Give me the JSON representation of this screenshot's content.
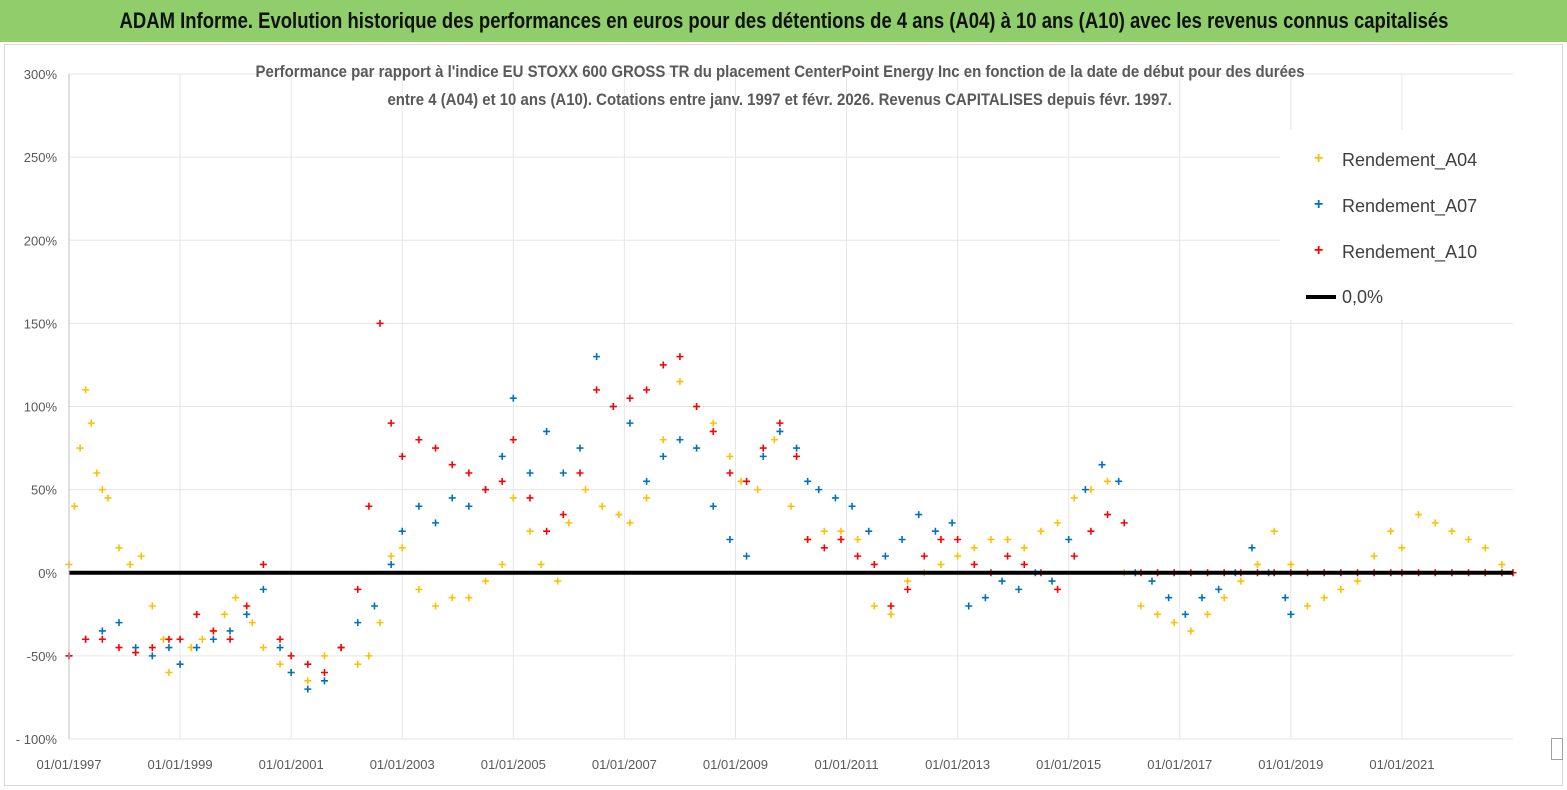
{
  "banner": {
    "title": "ADAM Informe. Evolution historique des performances en euros pour des détentions de 4 ans (A04) à 10 ans (A10) avec les revenus connus capitalisés"
  },
  "colors": {
    "banner": "#8fce6a",
    "a04": "#ffc000",
    "a07": "#0070c0",
    "a10": "#ff0000",
    "zero": "#000000"
  },
  "chart_data": {
    "type": "scatter",
    "title_line1": "Performance par rapport à l'indice EU STOXX 600 GROSS TR  du placement CenterPoint Energy Inc en fonction de la date de début pour des durées",
    "title_line2": "entre 4 (A04) et 10 ans (A10). Cotations entre janv. 1997 et févr. 2026. Revenus CAPITALISES depuis févr. 1997.",
    "xlabel": "",
    "ylabel": "",
    "x_range": [
      1997.0,
      2023.0
    ],
    "ylim": [
      -100,
      300
    ],
    "y_ticks": [
      "300%",
      "250%",
      "200%",
      "150%",
      "100%",
      "50%",
      "0%",
      "-50%",
      "- 100%"
    ],
    "y_tick_values": [
      300,
      250,
      200,
      150,
      100,
      50,
      0,
      -50,
      -100
    ],
    "x_ticks": [
      "01/01/1997",
      "01/01/1999",
      "01/01/2001",
      "01/01/2003",
      "01/01/2005",
      "01/01/2007",
      "01/01/2009",
      "01/01/2011",
      "01/01/2013",
      "01/01/2015",
      "01/01/2017",
      "01/01/2019",
      "01/01/2021"
    ],
    "x_tick_values": [
      1997,
      1999,
      2001,
      2003,
      2005,
      2007,
      2009,
      2011,
      2013,
      2015,
      2017,
      2019,
      2021
    ],
    "legend_position": "top-right",
    "series": [
      {
        "name": "Rendement_A04",
        "marker": "+",
        "x": [
          1997.0,
          1997.1,
          1997.2,
          1997.3,
          1997.4,
          1997.5,
          1997.6,
          1997.7,
          1997.9,
          1998.1,
          1998.3,
          1998.5,
          1998.7,
          1998.8,
          1999.0,
          1999.2,
          1999.4,
          1999.6,
          1999.8,
          2000.0,
          2000.3,
          2000.5,
          2000.8,
          2001.0,
          2001.3,
          2001.6,
          2001.9,
          2002.2,
          2002.4,
          2002.6,
          2002.8,
          2003.0,
          2003.3,
          2003.6,
          2003.9,
          2004.2,
          2004.5,
          2004.8,
          2005.0,
          2005.3,
          2005.5,
          2005.8,
          2006.0,
          2006.3,
          2006.6,
          2006.9,
          2007.1,
          2007.4,
          2007.7,
          2008.0,
          2008.3,
          2008.6,
          2008.9,
          2009.1,
          2009.4,
          2009.7,
          2010.0,
          2010.3,
          2010.6,
          2010.9,
          2011.2,
          2011.5,
          2011.8,
          2012.1,
          2012.4,
          2012.7,
          2013.0,
          2013.3,
          2013.6,
          2013.9,
          2014.2,
          2014.5,
          2014.8,
          2015.1,
          2015.4,
          2015.7,
          2016.0,
          2016.3,
          2016.6,
          2016.9,
          2017.2,
          2017.5,
          2017.8,
          2018.1,
          2018.4,
          2018.7,
          2019.0,
          2019.3,
          2019.6,
          2019.9,
          2020.2,
          2020.5,
          2020.8,
          2021.0,
          2021.3,
          2021.6,
          2021.9,
          2022.2,
          2022.5,
          2022.8,
          2023.0
        ],
        "y": [
          5,
          40,
          75,
          110,
          90,
          60,
          50,
          45,
          15,
          5,
          10,
          -20,
          -40,
          -60,
          -55,
          -45,
          -40,
          -35,
          -25,
          -15,
          -30,
          -45,
          -55,
          -60,
          -65,
          -50,
          -45,
          -55,
          -50,
          -30,
          10,
          15,
          -10,
          -20,
          -15,
          -15,
          -5,
          5,
          45,
          25,
          5,
          -5,
          30,
          50,
          40,
          35,
          30,
          45,
          80,
          115,
          100,
          90,
          70,
          55,
          50,
          80,
          40,
          20,
          25,
          25,
          20,
          -20,
          -25,
          -5,
          0,
          5,
          10,
          15,
          20,
          20,
          15,
          25,
          30,
          45,
          50,
          55,
          0,
          -20,
          -25,
          -30,
          -35,
          -25,
          -15,
          -5,
          5,
          25,
          5,
          -20,
          -15,
          -10,
          -5,
          10,
          25,
          15,
          35,
          30,
          25,
          20,
          15,
          5,
          0
        ]
      },
      {
        "name": "Rendement_A07",
        "marker": "+",
        "x": [
          1997.0,
          1997.3,
          1997.6,
          1997.9,
          1998.2,
          1998.5,
          1998.8,
          1999.0,
          1999.3,
          1999.6,
          1999.9,
          2000.2,
          2000.5,
          2000.8,
          2001.0,
          2001.3,
          2001.6,
          2001.9,
          2002.2,
          2002.5,
          2002.8,
          2003.0,
          2003.3,
          2003.6,
          2003.9,
          2004.2,
          2004.5,
          2004.8,
          2005.0,
          2005.3,
          2005.6,
          2005.9,
          2006.2,
          2006.5,
          2006.8,
          2007.1,
          2007.4,
          2007.7,
          2008.0,
          2008.3,
          2008.6,
          2008.9,
          2009.2,
          2009.5,
          2009.8,
          2010.1,
          2010.3,
          2010.5,
          2010.8,
          2011.1,
          2011.4,
          2011.7,
          2012.0,
          2012.3,
          2012.6,
          2012.9,
          2013.2,
          2013.5,
          2013.8,
          2014.1,
          2014.4,
          2014.7,
          2015.0,
          2015.3,
          2015.6,
          2015.9,
          2016.2,
          2016.5,
          2016.8,
          2017.1,
          2017.4,
          2017.7,
          2018.0,
          2018.3,
          2018.6,
          2018.9,
          2019.0
        ],
        "y": [
          -50,
          -40,
          -35,
          -30,
          -45,
          -50,
          -45,
          -55,
          -45,
          -40,
          -35,
          -25,
          -10,
          -45,
          -60,
          -70,
          -65,
          -45,
          -30,
          -20,
          5,
          25,
          40,
          30,
          45,
          40,
          50,
          70,
          105,
          60,
          85,
          60,
          75,
          130,
          100,
          90,
          55,
          70,
          80,
          75,
          40,
          20,
          10,
          70,
          85,
          75,
          55,
          50,
          45,
          40,
          25,
          10,
          20,
          35,
          25,
          30,
          -20,
          -15,
          -5,
          -10,
          0,
          -5,
          20,
          50,
          65,
          55,
          0,
          -5,
          -15,
          -25,
          -15,
          -10,
          0,
          15,
          0,
          -15,
          -25
        ]
      },
      {
        "name": "Rendement_A10",
        "marker": "+",
        "x": [
          1997.0,
          1997.3,
          1997.6,
          1997.9,
          1998.2,
          1998.5,
          1998.8,
          1999.0,
          1999.3,
          1999.6,
          1999.9,
          2000.2,
          2000.5,
          2000.8,
          2001.0,
          2001.3,
          2001.6,
          2001.9,
          2002.2,
          2002.4,
          2002.6,
          2002.8,
          2003.0,
          2003.3,
          2003.6,
          2003.9,
          2004.2,
          2004.5,
          2004.8,
          2005.0,
          2005.3,
          2005.6,
          2005.9,
          2006.2,
          2006.5,
          2006.8,
          2007.1,
          2007.4,
          2007.7,
          2008.0,
          2008.3,
          2008.6,
          2008.9,
          2009.2,
          2009.5,
          2009.8,
          2010.1,
          2010.3,
          2010.6,
          2010.9,
          2011.2,
          2011.5,
          2011.8,
          2012.1,
          2012.4,
          2012.7,
          2013.0,
          2013.3,
          2013.6,
          2013.9,
          2014.2,
          2014.5,
          2014.8,
          2015.1,
          2015.4,
          2015.7,
          2016.0,
          2016.3,
          2016.6,
          2016.9,
          2017.2,
          2017.5,
          2017.8,
          2018.1,
          2018.4,
          2018.7,
          2019.0,
          2019.3,
          2019.6,
          2019.9,
          2020.2,
          2020.5,
          2020.8,
          2021.0,
          2021.3,
          2021.6,
          2021.9,
          2022.2,
          2022.5,
          2022.8,
          2023.0
        ],
        "y": [
          -50,
          -40,
          -40,
          -45,
          -48,
          -45,
          -40,
          -40,
          -25,
          -35,
          -40,
          -20,
          5,
          -40,
          -50,
          -55,
          -60,
          -45,
          -10,
          40,
          150,
          90,
          70,
          80,
          75,
          65,
          60,
          50,
          55,
          80,
          45,
          25,
          35,
          60,
          110,
          100,
          105,
          110,
          125,
          130,
          100,
          85,
          60,
          55,
          75,
          90,
          70,
          20,
          15,
          20,
          10,
          5,
          -20,
          -10,
          10,
          20,
          20,
          5,
          0,
          10,
          5,
          0,
          -10,
          10,
          25,
          35,
          30,
          0,
          0,
          0,
          0,
          0,
          0,
          0,
          0,
          0,
          0,
          0,
          0,
          0,
          0,
          0,
          0,
          0,
          0,
          0,
          0,
          0,
          0,
          0,
          0
        ]
      }
    ],
    "zero_line_label": "0,0%"
  }
}
